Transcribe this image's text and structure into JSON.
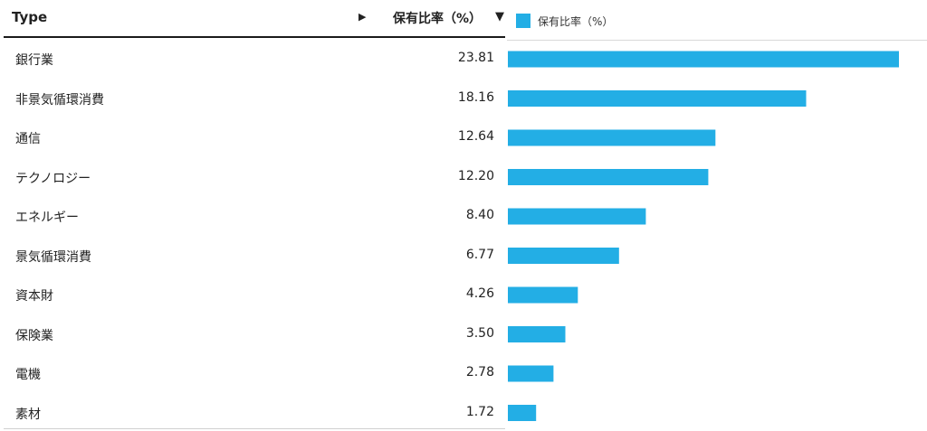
{
  "table": {
    "type_header": "Type",
    "value_header": "保有比率（%）",
    "sort_indicator": "▶",
    "sort_desc_indicator": "▼"
  },
  "legend": {
    "label": "保有比率（%）",
    "color": "#23aee5"
  },
  "chart_data": {
    "type": "bar",
    "orientation": "horizontal",
    "categories": [
      "銀行業",
      "非景気循環消費",
      "通信",
      "テクノロジー",
      "エネルギー",
      "景気循環消費",
      "資本財",
      "保険業",
      "電機",
      "素材"
    ],
    "value_labels": [
      "23.81",
      "18.16",
      "12.64",
      "12.20",
      "8.40",
      "6.77",
      "4.26",
      "3.50",
      "2.78",
      "1.72"
    ],
    "series": [
      {
        "name": "保有比率（%）",
        "values": [
          23.81,
          18.16,
          12.64,
          12.2,
          8.4,
          6.77,
          4.26,
          3.5,
          2.78,
          1.72
        ]
      }
    ],
    "xlim": [
      0,
      23.81
    ],
    "grid": false,
    "legend_position": "top-left"
  }
}
